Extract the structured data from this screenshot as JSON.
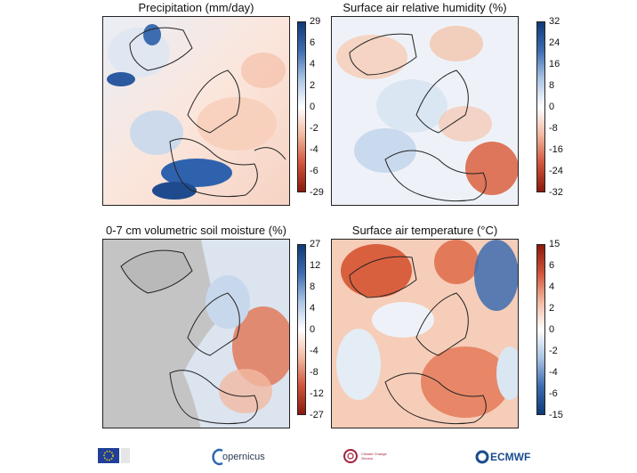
{
  "panels": [
    {
      "title": "Precipitation (mm/day)",
      "ticks": [
        "29",
        "6",
        "4",
        "2",
        "0",
        "-2",
        "-4",
        "-6",
        "-29"
      ],
      "palette": "bluered",
      "land": "mixed"
    },
    {
      "title": "Surface air relative humidity (%)",
      "ticks": [
        "32",
        "24",
        "16",
        "8",
        "0",
        "-8",
        "-16",
        "-24",
        "-32"
      ],
      "palette": "bluered",
      "land": "mixed"
    },
    {
      "title": "0-7 cm volumetric soil moisture (%)",
      "ticks": [
        "27",
        "12",
        "8",
        "4",
        "0",
        "-4",
        "-8",
        "-12",
        "-27"
      ],
      "palette": "bluered",
      "land": "soil"
    },
    {
      "title": "Surface air temperature (°C)",
      "ticks": [
        "15",
        "6",
        "4",
        "2",
        "0",
        "-2",
        "-4",
        "-6",
        "-15"
      ],
      "palette": "redblue",
      "land": "warm"
    }
  ],
  "logos": {
    "opernicus": "opernicus",
    "climate": "Climate Change Service",
    "ecmwf": "ECMWF"
  },
  "colors": {
    "blue_dark": "#0f3a78",
    "blue_light": "#a9c4e4",
    "red_dark": "#8a1a0c",
    "red_light": "#f2b8a0",
    "grey_mask": "#c4c4c4"
  }
}
